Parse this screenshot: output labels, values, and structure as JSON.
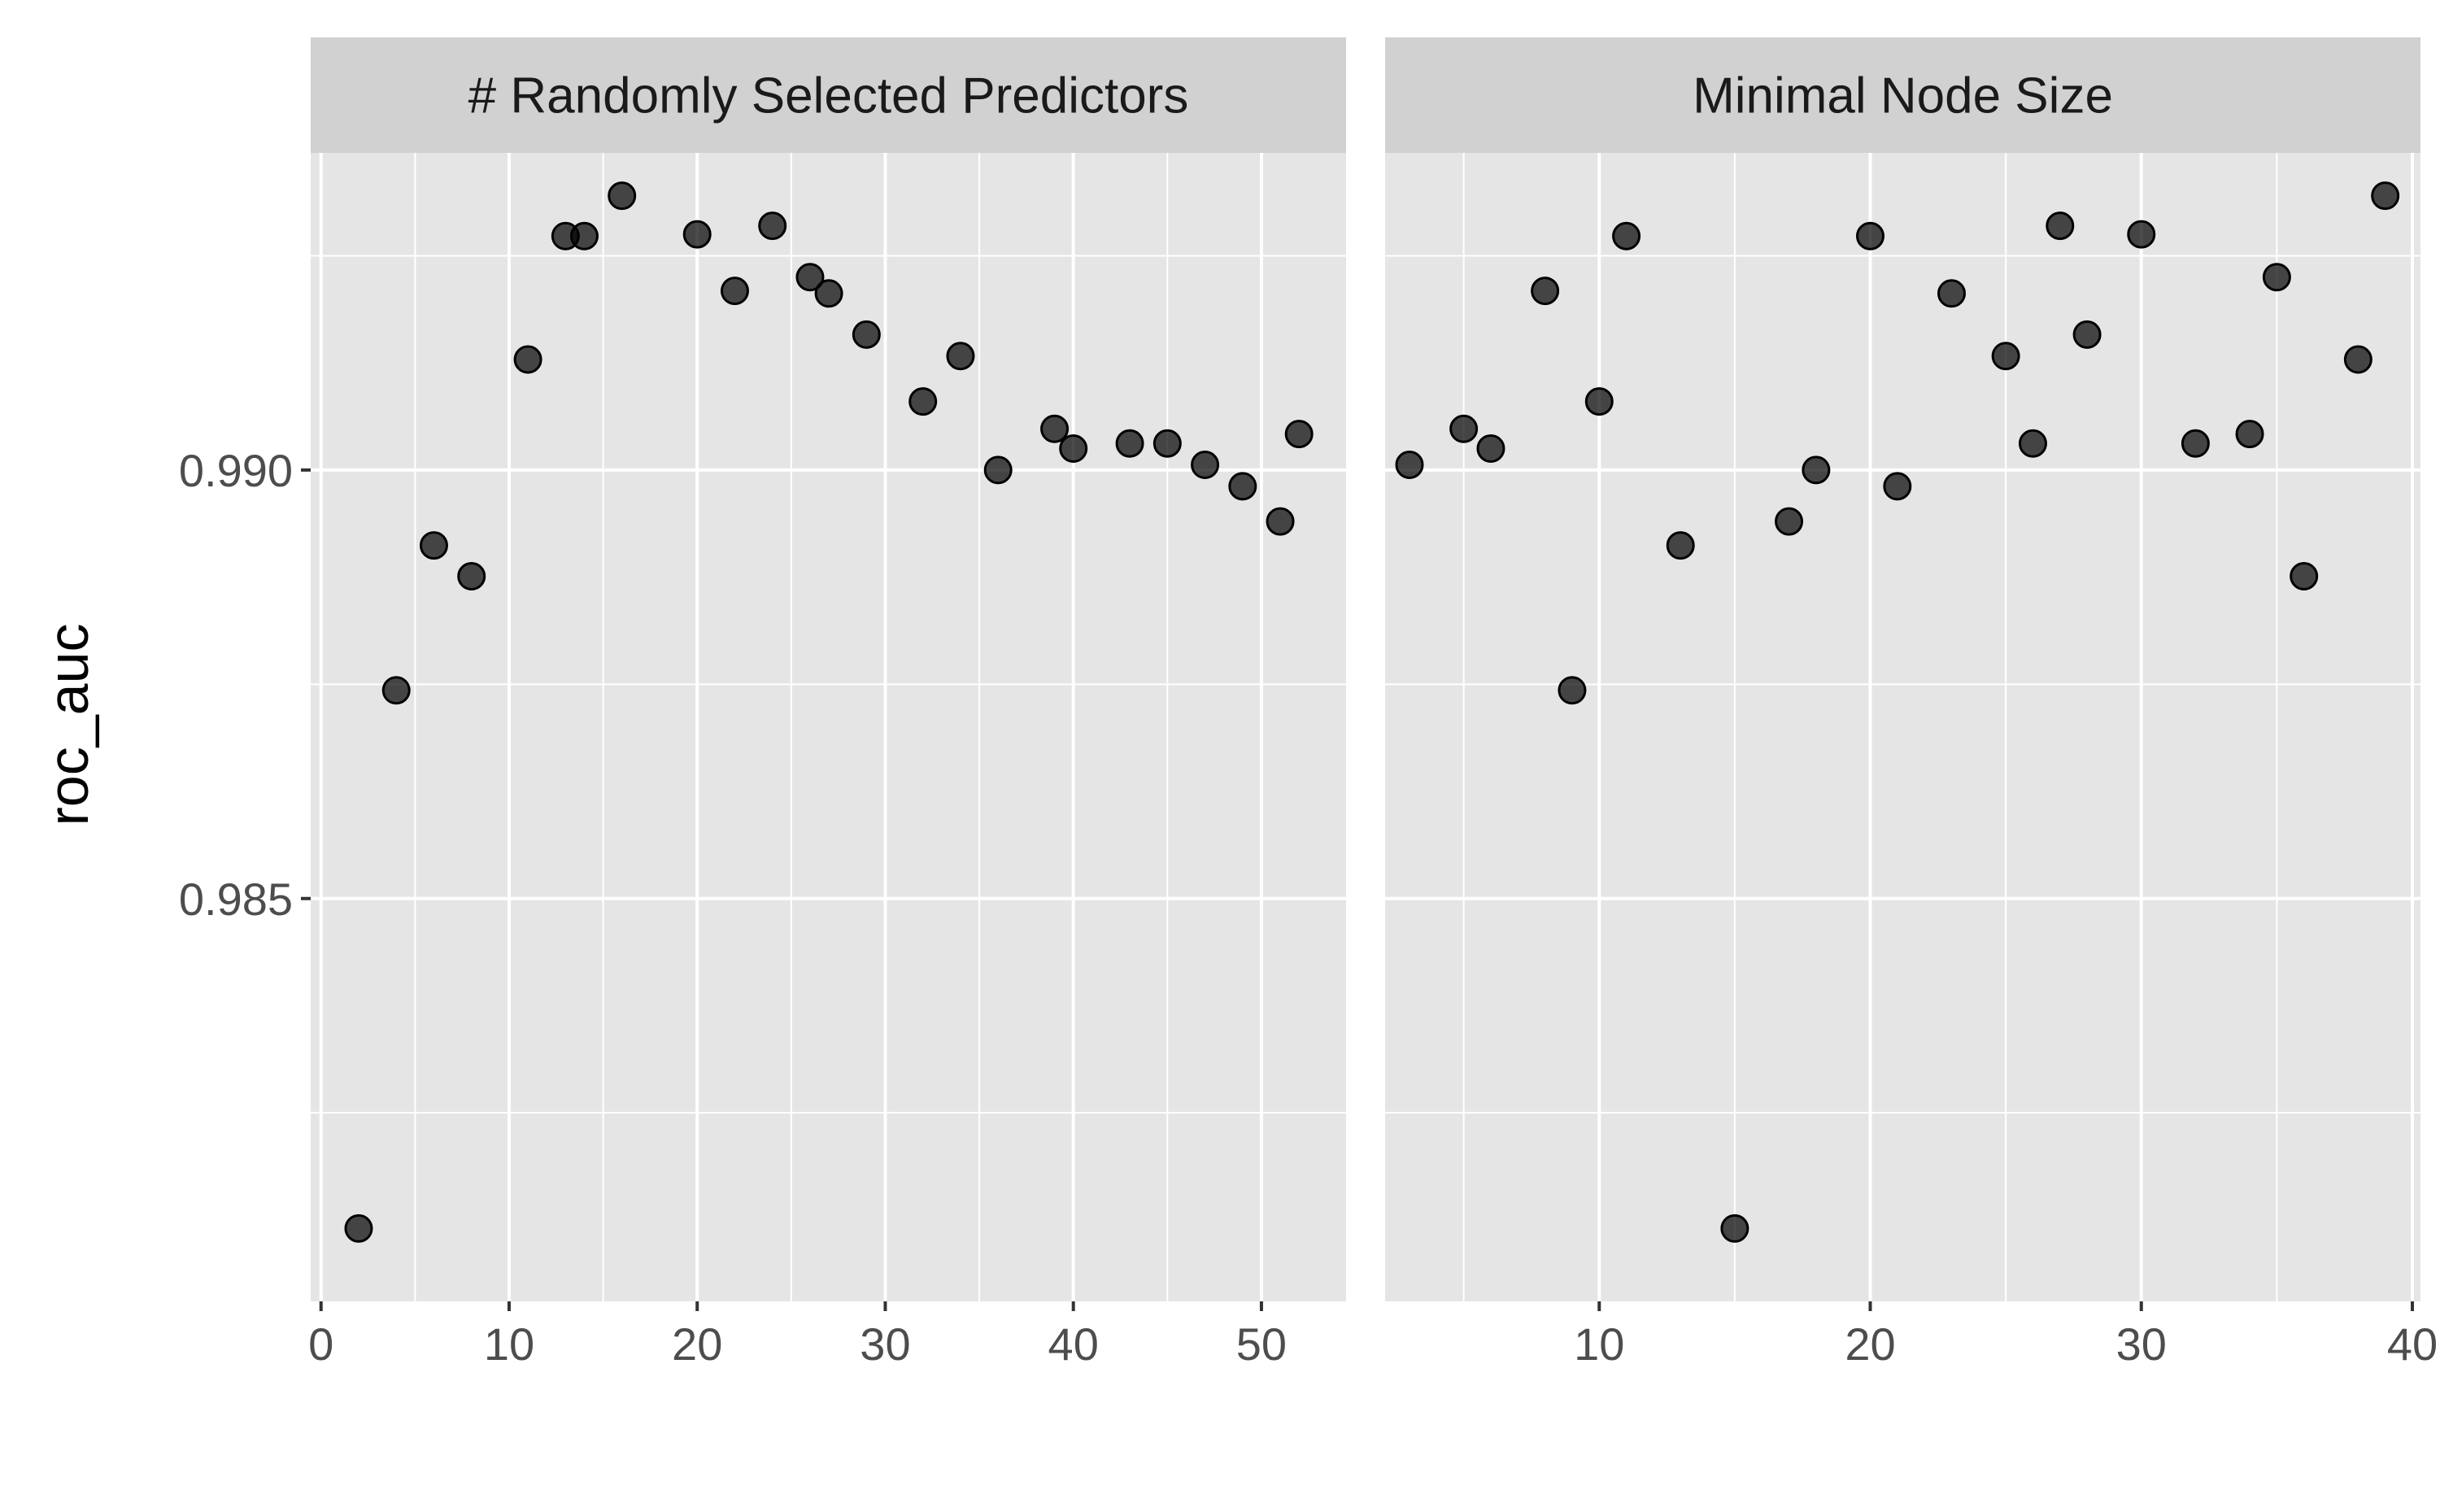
{
  "chart_data": {
    "type": "scatter",
    "ylabel": "roc_auc",
    "xlabel": "",
    "ylim": [
      0.9803,
      0.9937
    ],
    "yticks": [
      0.985,
      0.99
    ],
    "ytick_labels": [
      "0.985",
      "0.990"
    ],
    "grid": true,
    "point_color": "#000000",
    "panel_bg": "#e5e5e5",
    "strip_bg": "#d1d1d1",
    "panels": [
      {
        "strip_label": "# Randomly Selected Predictors",
        "xlim": [
          -0.55,
          54.5
        ],
        "xticks": [
          0,
          10,
          20,
          30,
          40,
          50
        ],
        "xtick_labels": [
          "0",
          "10",
          "20",
          "30",
          "40",
          "50"
        ],
        "points": [
          [
            2,
            0.98115
          ],
          [
            4,
            0.98743
          ],
          [
            6,
            0.98912
          ],
          [
            8,
            0.98876
          ],
          [
            11,
            0.99129
          ],
          [
            13,
            0.99273
          ],
          [
            14,
            0.99273
          ],
          [
            16,
            0.9932
          ],
          [
            20,
            0.99275
          ],
          [
            22,
            0.99209
          ],
          [
            24,
            0.99285
          ],
          [
            26,
            0.99225
          ],
          [
            27,
            0.99206
          ],
          [
            29,
            0.99158
          ],
          [
            32,
            0.9908
          ],
          [
            34,
            0.99133
          ],
          [
            36,
            0.99
          ],
          [
            39,
            0.99048
          ],
          [
            40,
            0.99025
          ],
          [
            43,
            0.99031
          ],
          [
            45,
            0.99031
          ],
          [
            47,
            0.99006
          ],
          [
            49,
            0.98981
          ],
          [
            51,
            0.9894
          ],
          [
            52,
            0.99042
          ]
        ]
      },
      {
        "strip_label": "Minimal Node Size",
        "xlim": [
          2.1,
          40.3
        ],
        "xticks": [
          10,
          20,
          30,
          40
        ],
        "xtick_labels": [
          "10",
          "20",
          "30",
          "40"
        ],
        "points": [
          [
            3,
            0.99006
          ],
          [
            5,
            0.99048
          ],
          [
            6,
            0.99025
          ],
          [
            8,
            0.99209
          ],
          [
            9,
            0.98743
          ],
          [
            10,
            0.9908
          ],
          [
            11,
            0.99273
          ],
          [
            13,
            0.98912
          ],
          [
            15,
            0.98115
          ],
          [
            17,
            0.9894
          ],
          [
            18,
            0.99
          ],
          [
            20,
            0.99273
          ],
          [
            21,
            0.98981
          ],
          [
            23,
            0.99206
          ],
          [
            25,
            0.99133
          ],
          [
            26,
            0.99031
          ],
          [
            27,
            0.99285
          ],
          [
            28,
            0.99158
          ],
          [
            30,
            0.99275
          ],
          [
            32,
            0.99031
          ],
          [
            34,
            0.99042
          ],
          [
            35,
            0.99225
          ],
          [
            36,
            0.98876
          ],
          [
            38,
            0.99129
          ],
          [
            39,
            0.9932
          ]
        ]
      }
    ]
  }
}
